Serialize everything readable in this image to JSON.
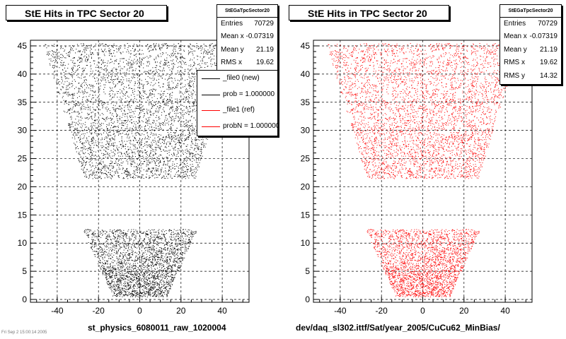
{
  "left_panel": {
    "title": "StE Hits in TPC Sector 20",
    "footer": "st_physics_6080011_raw_1020004",
    "stats": {
      "header": "StEGaTpcSector20",
      "rows": [
        {
          "label": "Entries",
          "value": "70729"
        },
        {
          "label": "Mean x",
          "value": "-0.07319"
        },
        {
          "label": "Mean y",
          "value": "21.19"
        },
        {
          "label": "RMS x",
          "value": "19.62"
        }
      ]
    },
    "legend": [
      {
        "label": "_file0 (new)",
        "color": "#000000"
      },
      {
        "label": "prob = 1.000000",
        "color": "#000000"
      },
      {
        "label": "_file1 (ref)",
        "color": "#ff0000"
      },
      {
        "label": "probN = 1.000000",
        "color": "#ff0000"
      }
    ]
  },
  "right_panel": {
    "title": "StE Hits in TPC Sector 20",
    "footer": "dev/daq_sl302.ittf/Sat/year_2005/CuCu62_MinBias/",
    "stats": {
      "header": "StEGaTpcSector20",
      "rows": [
        {
          "label": "Entries",
          "value": "70729"
        },
        {
          "label": "Mean x",
          "value": "-0.07319"
        },
        {
          "label": "Mean y",
          "value": "21.19"
        },
        {
          "label": "RMS x",
          "value": "19.62"
        },
        {
          "label": "RMS y",
          "value": "14.32"
        }
      ]
    }
  },
  "corner_text": "Fri Sep 2 15:00:14 2005",
  "chart_data": [
    {
      "type": "scatter",
      "title": "StE Hits in TPC Sector 20",
      "color": "#000000",
      "xlim": [
        -53,
        53
      ],
      "ylim": [
        -0.5,
        46
      ],
      "x_ticks": [
        -40,
        -20,
        0,
        20,
        40
      ],
      "y_ticks": [
        0,
        5,
        10,
        15,
        20,
        25,
        30,
        35,
        40,
        45
      ],
      "grid": true,
      "legend_position": "top-right",
      "regions": [
        {
          "name": "outer sector",
          "y_range": [
            21.5,
            45.5
          ],
          "x_half_width_bottom": 27,
          "x_half_width_top": 47
        },
        {
          "name": "inner sector",
          "y_range": [
            0.5,
            12.5
          ],
          "x_half_width_bottom": 13,
          "x_half_width_top": 28
        }
      ]
    },
    {
      "type": "scatter",
      "title": "StE Hits in TPC Sector 20",
      "color": "#ff0000",
      "xlim": [
        -53,
        53
      ],
      "ylim": [
        -0.5,
        46
      ],
      "x_ticks": [
        -40,
        -20,
        0,
        20,
        40
      ],
      "y_ticks": [
        0,
        5,
        10,
        15,
        20,
        25,
        30,
        35,
        40,
        45
      ],
      "grid": true,
      "regions": [
        {
          "name": "outer sector",
          "y_range": [
            21.5,
            45.5
          ],
          "x_half_width_bottom": 27,
          "x_half_width_top": 47
        },
        {
          "name": "inner sector",
          "y_range": [
            0.5,
            12.5
          ],
          "x_half_width_bottom": 13,
          "x_half_width_top": 28
        }
      ]
    }
  ]
}
